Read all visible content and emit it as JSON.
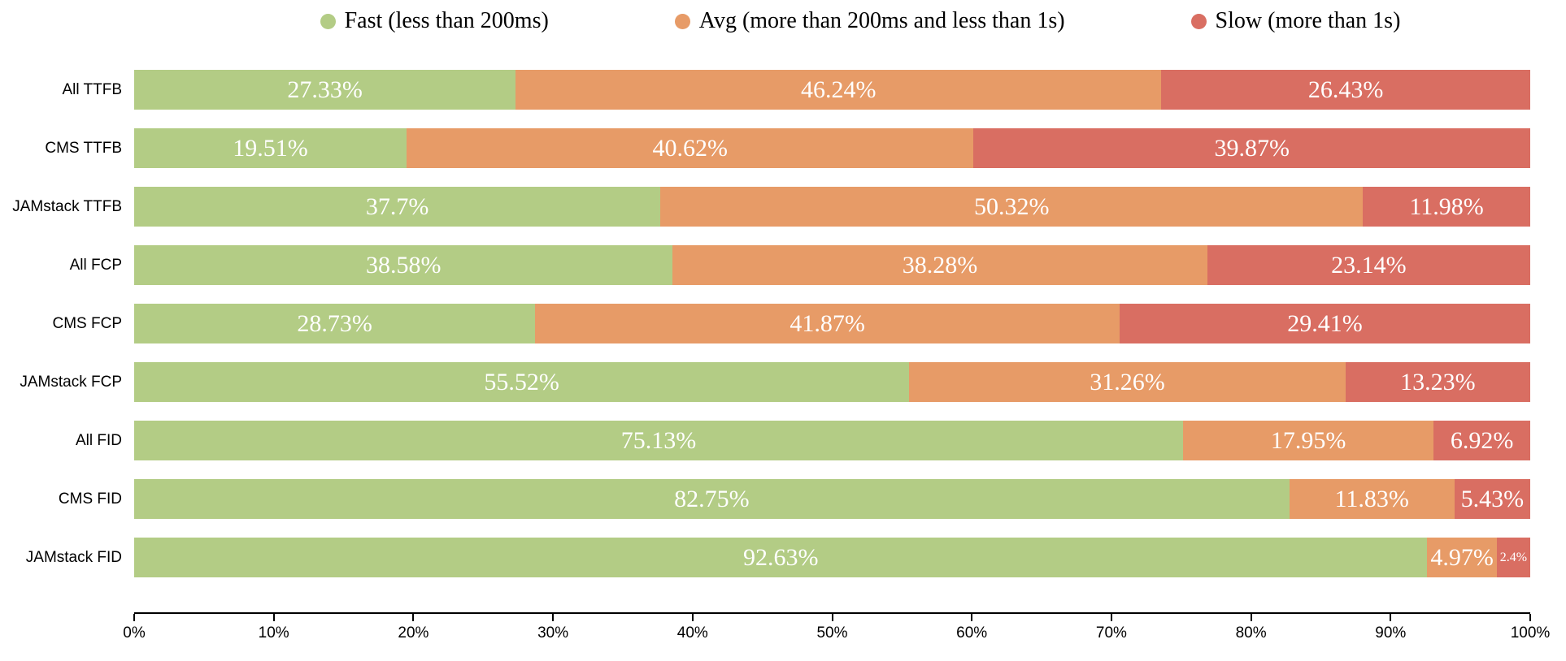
{
  "chart_data": {
    "type": "bar",
    "orientation": "horizontal",
    "stacked": true,
    "unit": "%",
    "title": "",
    "xlabel": "",
    "ylabel": "",
    "legend_position": "top",
    "categories": [
      "All TTFB",
      "CMS TTFB",
      "JAMstack TTFB",
      "All FCP",
      "CMS FCP",
      "JAMstack FCP",
      "All FID",
      "CMS FID",
      "JAMstack FID"
    ],
    "series": [
      {
        "name": "Fast (less than 200ms)",
        "color": "#b3cc85",
        "values": [
          27.33,
          19.51,
          37.7,
          38.58,
          28.73,
          55.52,
          75.13,
          82.75,
          92.63
        ]
      },
      {
        "name": "Avg (more than 200ms and less than 1s)",
        "color": "#e79b67",
        "values": [
          46.24,
          40.62,
          50.32,
          38.28,
          41.87,
          31.26,
          17.95,
          11.83,
          4.97
        ]
      },
      {
        "name": "Slow (more than 1s)",
        "color": "#d96e62",
        "values": [
          26.43,
          39.87,
          11.98,
          23.14,
          29.41,
          13.23,
          6.92,
          5.43,
          2.4
        ]
      }
    ],
    "x_axis": {
      "min": 0,
      "max": 100,
      "tick_labels": [
        "0%",
        "10%",
        "20%",
        "30%",
        "40%",
        "50%",
        "60%",
        "70%",
        "80%",
        "90%",
        "100%"
      ]
    },
    "value_label_suffix": "%"
  }
}
